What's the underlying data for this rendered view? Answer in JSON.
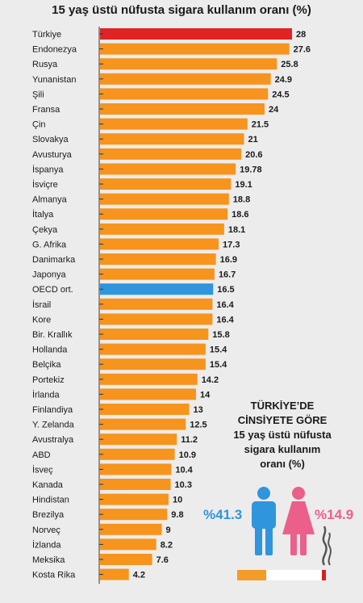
{
  "colors": {
    "bar": "#f7941d",
    "highlight_turkey": "#e02424",
    "highlight_oecd": "#2f95dc",
    "male": "#2f95dc",
    "female": "#ec5f8a",
    "background": "#ececec"
  },
  "chart_data": {
    "type": "bar",
    "orientation": "horizontal",
    "title": "15 yaş üstü nüfusta sigara kullanım oranı (%)",
    "categories": [
      "Türkiye",
      "Endonezya",
      "Rusya",
      "Yunanistan",
      "Şili",
      "Fransa",
      "Çin",
      "Slovakya",
      "Avusturya",
      "İspanya",
      "İsviçre",
      "Almanya",
      "İtalya",
      "Çekya",
      "G. Afrika",
      "Danimarka",
      "Japonya",
      "OECD ort.",
      "İsrail",
      "Kore",
      "Bir. Krallık",
      "Hollanda",
      "Belçika",
      "Portekiz",
      "İrlanda",
      "Finlandiya",
      "Y. Zelanda",
      "Avustralya",
      "ABD",
      "İsveç",
      "Kanada",
      "Hindistan",
      "Brezilya",
      "Norveç",
      "İzlanda",
      "Meksika",
      "Kosta Rika"
    ],
    "values": [
      28,
      27.6,
      25.8,
      24.9,
      24.5,
      24,
      21.5,
      21,
      20.6,
      19.78,
      19.1,
      18.8,
      18.6,
      18.1,
      17.3,
      16.9,
      16.7,
      16.5,
      16.4,
      16.4,
      15.8,
      15.4,
      15.4,
      14.2,
      14,
      13,
      12.5,
      11.2,
      10.9,
      10.4,
      10.3,
      10,
      9.8,
      9,
      8.2,
      7.6,
      4.2
    ],
    "value_labels": [
      "28",
      "27.6",
      "25.8",
      "24.9",
      "24.5",
      "24",
      "21.5",
      "21",
      "20.6",
      "19.78",
      "19.1",
      "18.8",
      "18.6",
      "18.1",
      "17.3",
      "16.9",
      "16.7",
      "16.5",
      "16.4",
      "16.4",
      "15.8",
      "15.4",
      "15.4",
      "14.2",
      "14",
      "13",
      "12.5",
      "11.2",
      "10.9",
      "10.4",
      "10.3",
      "10",
      "9.8",
      "9",
      "8.2",
      "7.6",
      "4.2"
    ],
    "highlight": {
      "Türkiye": "highlight_turkey",
      "OECD ort.": "highlight_oecd"
    },
    "xlim": [
      0,
      28
    ],
    "grid": false
  },
  "inset": {
    "heading_lines": [
      "TÜRKİYE’DE",
      "CİNSİYETE GÖRE",
      "15 yaş üstü nüfusta",
      "sigara kullanım",
      "oranı  (%)"
    ],
    "male_pct": "%41.3",
    "female_pct": "%14.9",
    "icons": [
      "male-figure-icon",
      "female-figure-icon",
      "cigarette-icon"
    ]
  }
}
